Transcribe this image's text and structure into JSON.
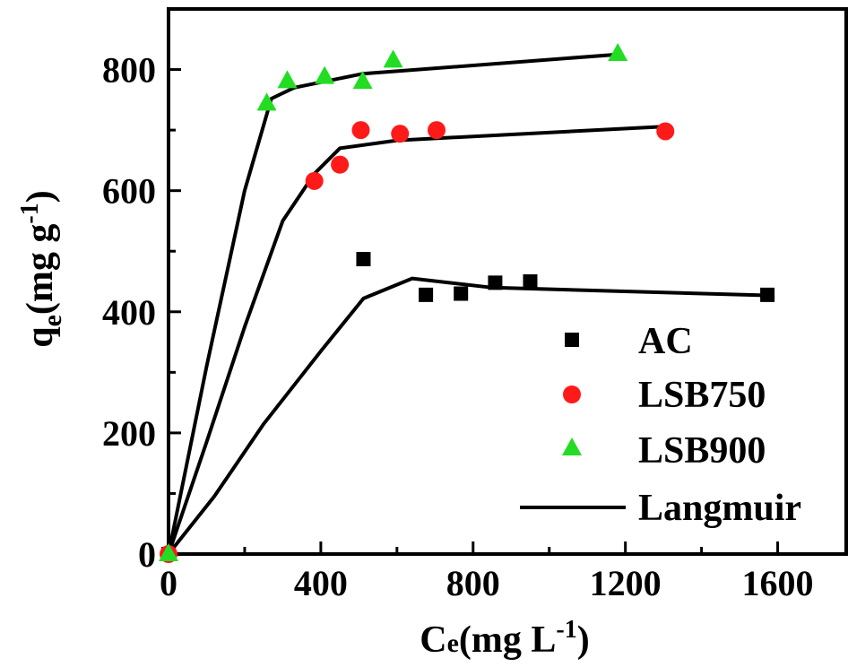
{
  "chart_data": {
    "type": "scatter",
    "xlabel": {
      "main": "C",
      "sub": "e",
      "tail": "(mg L",
      "sup": "-1",
      "close": ")"
    },
    "ylabel": {
      "main": "q",
      "sub": "e",
      "tail": "(mg g",
      "sup": "-1",
      "close": ")"
    },
    "xlim": [
      0,
      1780
    ],
    "ylim": [
      0,
      900
    ],
    "xticks": [
      0,
      400,
      800,
      1200,
      1600
    ],
    "yticks": [
      0,
      200,
      400,
      600,
      800
    ],
    "xtick_labels": [
      "0",
      "400",
      "800",
      "1200",
      "1600"
    ],
    "ytick_labels": [
      "0",
      "200",
      "400",
      "600",
      "800"
    ],
    "legend_position": "lower-right",
    "series": [
      {
        "name": "AC",
        "marker": "square",
        "color": "#000000",
        "points": [
          [
            0,
            0
          ],
          [
            512,
            487
          ],
          [
            676,
            428
          ],
          [
            768,
            430
          ],
          [
            858,
            448
          ],
          [
            950,
            450
          ],
          [
            1573,
            428
          ]
        ]
      },
      {
        "name": "LSB750",
        "marker": "circle",
        "color": "#ff1a1a",
        "points": [
          [
            0,
            0
          ],
          [
            383,
            616
          ],
          [
            450,
            643
          ],
          [
            505,
            700
          ],
          [
            608,
            694
          ],
          [
            704,
            700
          ],
          [
            1305,
            698
          ]
        ]
      },
      {
        "name": "LSB900",
        "marker": "triangle",
        "color": "#22dd22",
        "points": [
          [
            0,
            0
          ],
          [
            258,
            744
          ],
          [
            312,
            781
          ],
          [
            410,
            788
          ],
          [
            510,
            780
          ],
          [
            590,
            815
          ],
          [
            1180,
            826
          ]
        ]
      }
    ],
    "fit_lines": {
      "name": "Langmuir",
      "color": "#000000",
      "curves": [
        [
          [
            0,
            0
          ],
          [
            120,
            95
          ],
          [
            250,
            215
          ],
          [
            400,
            335
          ],
          [
            512,
            422
          ],
          [
            640,
            455
          ],
          [
            850,
            440
          ],
          [
            1573,
            427
          ]
        ],
        [
          [
            0,
            0
          ],
          [
            100,
            185
          ],
          [
            200,
            375
          ],
          [
            300,
            550
          ],
          [
            383,
            628
          ],
          [
            450,
            670
          ],
          [
            600,
            683
          ],
          [
            1305,
            706
          ]
        ],
        [
          [
            0,
            0
          ],
          [
            100,
            310
          ],
          [
            200,
            600
          ],
          [
            270,
            752
          ],
          [
            330,
            770
          ],
          [
            510,
            793
          ],
          [
            1180,
            825
          ]
        ]
      ]
    },
    "legend_entries": [
      "AC",
      "LSB750",
      "LSB900",
      "Langmuir"
    ]
  }
}
